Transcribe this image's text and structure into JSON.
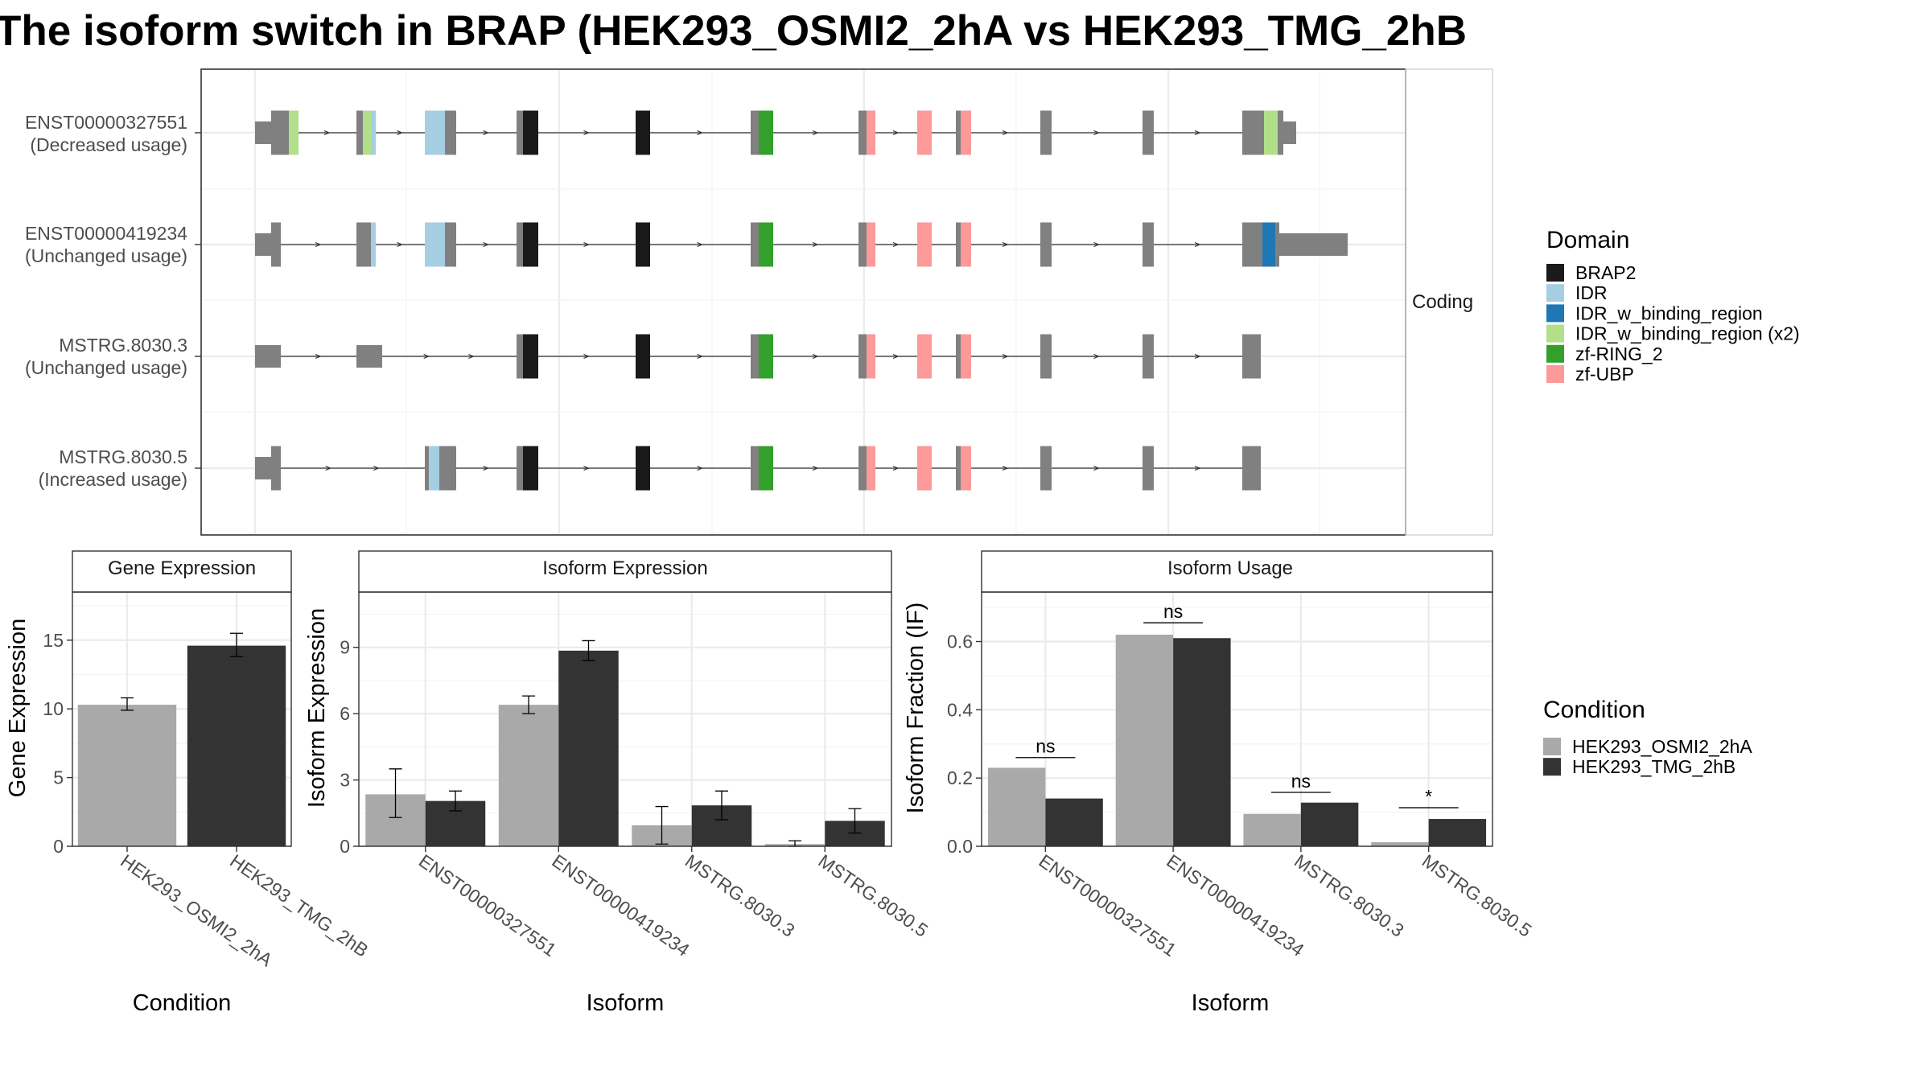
{
  "title": "The isoform switch in BRAP (HEK293_OSMI2_2hA vs HEK293_TMG_2hB",
  "colors": {
    "HEK293_OSMI2_2hA": "#a9a9a9",
    "HEK293_TMG_2hB": "#333333",
    "intron": "#333333",
    "exon": "#808080",
    "BRAP2": "#1a1a1a",
    "IDR": "#a6cee3",
    "IDR_w_binding_region": "#1f78b4",
    "IDR_w_binding_region (x2)": "#b2df8a",
    "zf-RING_2": "#33a02c",
    "zf-UBP": "#fb9a99"
  },
  "chart_data": [
    {
      "type": "gene-structure",
      "facet_label": "Coding",
      "isoforms": [
        {
          "id": "ENST00000327551",
          "usage": "(Decreased usage)"
        },
        {
          "id": "ENST00000419234",
          "usage": "(Unchanged usage)"
        },
        {
          "id": "MSTRG.8030.3",
          "usage": "(Unchanged usage)"
        },
        {
          "id": "MSTRG.8030.5",
          "usage": "(Increased usage)"
        }
      ],
      "legend": {
        "title": "Domain",
        "items": [
          "BRAP2",
          "IDR",
          "IDR_w_binding_region",
          "IDR_w_binding_region (x2)",
          "zf-RING_2",
          "zf-UBP"
        ]
      }
    },
    {
      "type": "bar",
      "strip": "Gene Expression",
      "xlabel": "Condition",
      "ylabel": "Gene Expression",
      "ylim": [
        0,
        18.5
      ],
      "yticks": [
        0,
        5,
        10,
        15
      ],
      "categories": [
        "HEK293_OSMI2_2hA",
        "HEK293_TMG_2hB"
      ],
      "values": [
        10.3,
        14.6
      ],
      "errors": [
        [
          9.9,
          10.8
        ],
        [
          13.8,
          15.5
        ]
      ]
    },
    {
      "type": "bar",
      "strip": "Isoform Expression",
      "xlabel": "Isoform",
      "ylabel": "Isoform Expression",
      "ylim": [
        0,
        11.5
      ],
      "yticks": [
        0,
        3,
        6,
        9
      ],
      "categories": [
        "ENST00000327551",
        "ENST00000419234",
        "MSTRG.8030.3",
        "MSTRG.8030.5"
      ],
      "series": [
        {
          "name": "HEK293_OSMI2_2hA",
          "values": [
            2.35,
            6.4,
            0.95,
            0.1
          ],
          "errors": [
            [
              1.3,
              3.5
            ],
            [
              6.0,
              6.8
            ],
            [
              0.1,
              1.8
            ],
            [
              0.0,
              0.25
            ]
          ]
        },
        {
          "name": "HEK293_TMG_2hB",
          "values": [
            2.05,
            8.85,
            1.85,
            1.15
          ],
          "errors": [
            [
              1.6,
              2.5
            ],
            [
              8.4,
              9.3
            ],
            [
              1.2,
              2.5
            ],
            [
              0.6,
              1.7
            ]
          ]
        }
      ]
    },
    {
      "type": "bar",
      "strip": "Isoform Usage",
      "xlabel": "Isoform",
      "ylabel": "Isoform Fraction (IF)",
      "ylim": [
        0,
        0.745
      ],
      "yticks": [
        0.0,
        0.2,
        0.4,
        0.6
      ],
      "ytick_labels": [
        "0.0",
        "0.2",
        "0.4",
        "0.6"
      ],
      "categories": [
        "ENST00000327551",
        "ENST00000419234",
        "MSTRG.8030.3",
        "MSTRG.8030.5"
      ],
      "series": [
        {
          "name": "HEK293_OSMI2_2hA",
          "values": [
            0.23,
            0.62,
            0.095,
            0.012
          ]
        },
        {
          "name": "HEK293_TMG_2hB",
          "values": [
            0.14,
            0.61,
            0.128,
            0.08
          ]
        }
      ],
      "significance": [
        "ns",
        "ns",
        "ns",
        "*"
      ],
      "significance_y": [
        0.26,
        0.655,
        0.158,
        0.113
      ]
    }
  ],
  "condition_legend": {
    "title": "Condition",
    "items": [
      "HEK293_OSMI2_2hA",
      "HEK293_TMG_2hB"
    ]
  }
}
